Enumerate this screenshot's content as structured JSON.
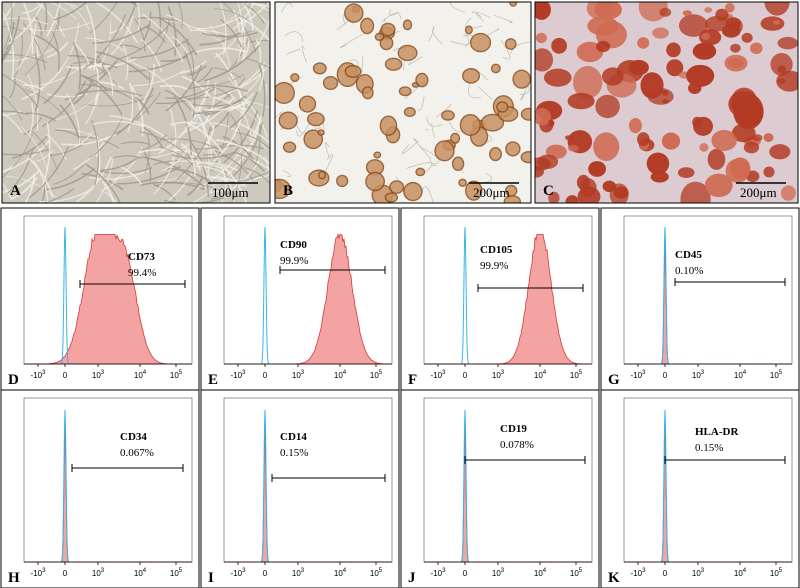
{
  "images": [
    {
      "letter": "A",
      "scale": "100μm"
    },
    {
      "letter": "B",
      "scale": "200μm"
    },
    {
      "letter": "C",
      "scale": "200μm"
    }
  ],
  "axis_ticks": [
    {
      "base": "-10",
      "exp": "3"
    },
    {
      "base": "0"
    },
    {
      "base": "10",
      "exp": "3"
    },
    {
      "base": "10",
      "exp": "4"
    },
    {
      "base": "10",
      "exp": "5"
    }
  ],
  "histograms": [
    {
      "letter": "D",
      "marker": "CD73",
      "percent": "99.4%"
    },
    {
      "letter": "E",
      "marker": "CD90",
      "percent": "99.9%"
    },
    {
      "letter": "F",
      "marker": "CD105",
      "percent": "99.9%"
    },
    {
      "letter": "G",
      "marker": "CD45",
      "percent": "0.10%"
    },
    {
      "letter": "H",
      "marker": "CD34",
      "percent": "0.067%"
    },
    {
      "letter": "I",
      "marker": "CD14",
      "percent": "0.15%"
    },
    {
      "letter": "J",
      "marker": "CD19",
      "percent": "0.078%"
    },
    {
      "letter": "K",
      "marker": "HLA-DR",
      "percent": "0.15%"
    }
  ]
}
